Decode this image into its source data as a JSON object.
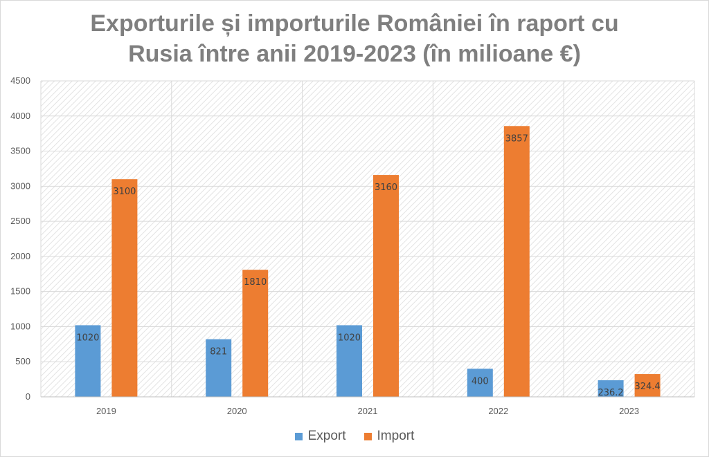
{
  "chart_data": {
    "type": "bar",
    "title_line1": "Exporturile și importurile României în raport cu",
    "title_line2": "Rusia între anii 2019-2023 (în milioane €)",
    "categories": [
      "2019",
      "2020",
      "2021",
      "2022",
      "2023"
    ],
    "series": [
      {
        "name": "Export",
        "color": "#5b9bd5",
        "values": [
          1020,
          821,
          1020,
          400,
          236.2
        ],
        "labels": [
          "1020",
          "821",
          "1020",
          "400",
          "236.2"
        ]
      },
      {
        "name": "Import",
        "color": "#ed7d31",
        "values": [
          3100,
          1810,
          3160,
          3857,
          324.4
        ],
        "labels": [
          "3100",
          "1810",
          "3160",
          "3857",
          "324.4"
        ]
      }
    ],
    "ylim": [
      0,
      4500
    ],
    "y_ticks": [
      "0",
      "500",
      "1000",
      "1500",
      "2000",
      "2500",
      "3000",
      "3500",
      "4000",
      "4500"
    ],
    "grid": true,
    "legend_position": "bottom"
  }
}
